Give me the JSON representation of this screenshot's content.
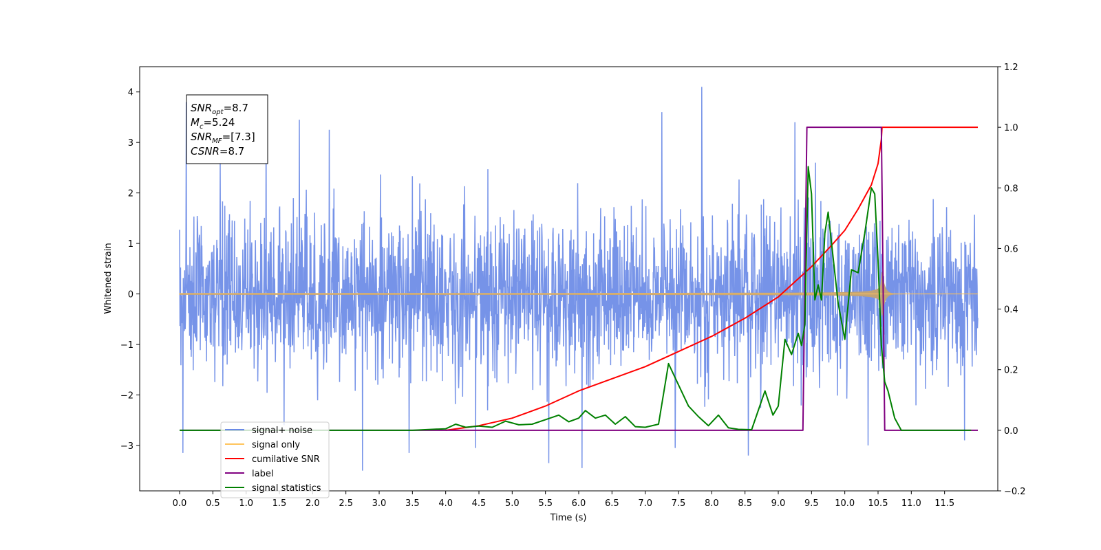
{
  "chart_data": {
    "type": "line",
    "xlabel": "Time (s)",
    "ylabel_left": "Whitened strain",
    "ylabel_right": "",
    "x_range": [
      -0.6,
      12.3
    ],
    "y_left_range": [
      -3.9,
      4.5
    ],
    "y_right_range": [
      -0.2,
      1.2
    ],
    "x_ticks": [
      "0.0",
      "0.5",
      "1.0",
      "1.5",
      "2.0",
      "2.5",
      "3.0",
      "3.5",
      "4.0",
      "4.5",
      "5.0",
      "5.5",
      "6.0",
      "6.5",
      "7.0",
      "7.5",
      "8.0",
      "8.5",
      "9.0",
      "9.5",
      "10.0",
      "10.5",
      "11.0",
      "11.5"
    ],
    "y_left_ticks": [
      "−3",
      "−2",
      "−1",
      "0",
      "1",
      "2",
      "3",
      "4"
    ],
    "y_right_ticks": [
      "−0.2",
      "0.0",
      "0.2",
      "0.4",
      "0.6",
      "0.8",
      "1.0",
      "1.2"
    ],
    "grid": false,
    "legend_position": "lower-left",
    "annotation": {
      "lines": [
        {
          "base": "SNR",
          "sub": "opt",
          "value": "=8.7"
        },
        {
          "base": "M",
          "sub": "c",
          "value": "=5.24"
        },
        {
          "base": "SNR",
          "sub": "MF",
          "value": "=[7.3]"
        },
        {
          "base": "CSNR",
          "sub": "",
          "value": "=8.7"
        }
      ]
    },
    "series": [
      {
        "name": "signal+ noise",
        "color": "#6a8ae6",
        "axis": "left",
        "kind": "noise",
        "x_start": 0.0,
        "x_end": 12.0,
        "typical_envelope": 1.8,
        "spikes": [
          [
            0.1,
            3.8
          ],
          [
            0.05,
            -3.15
          ],
          [
            1.3,
            3.55
          ],
          [
            1.8,
            3.45
          ],
          [
            2.25,
            3.25
          ],
          [
            2.75,
            -3.5
          ],
          [
            3.45,
            3.65
          ],
          [
            3.45,
            -3.15
          ],
          [
            4.45,
            -3.05
          ],
          [
            5.55,
            -3.35
          ],
          [
            6.05,
            -3.45
          ],
          [
            7.25,
            3.6
          ],
          [
            7.85,
            4.1
          ],
          [
            7.45,
            -3.05
          ],
          [
            8.55,
            -3.2
          ],
          [
            9.25,
            3.4
          ],
          [
            10.35,
            -3.0
          ],
          [
            11.8,
            -2.9
          ]
        ]
      },
      {
        "name": "signal only",
        "color": "#ffc45c",
        "fill_color": "#c2a376",
        "axis": "left",
        "kind": "chirp",
        "x_start": 0.0,
        "x_end": 12.0,
        "merger_time": 10.55,
        "peak_amplitude": 0.55
      },
      {
        "name": "cumilative SNR",
        "color": "#ff0000",
        "axis": "right",
        "x": [
          4.0,
          4.5,
          5.0,
          5.5,
          6.0,
          6.5,
          7.0,
          7.5,
          8.0,
          8.5,
          9.0,
          9.5,
          9.8,
          10.0,
          10.2,
          10.4,
          10.5,
          10.55,
          10.56,
          12.0
        ],
        "y": [
          0.0,
          0.015,
          0.04,
          0.08,
          0.13,
          0.17,
          0.21,
          0.26,
          0.31,
          0.37,
          0.44,
          0.54,
          0.61,
          0.66,
          0.73,
          0.81,
          0.88,
          0.96,
          1.0,
          1.0
        ]
      },
      {
        "name": "label",
        "color": "#800080",
        "axis": "right",
        "x": [
          0.0,
          9.37,
          9.43,
          10.55,
          10.6,
          12.0
        ],
        "y": [
          0.0,
          0.0,
          1.0,
          1.0,
          0.0,
          0.0
        ]
      },
      {
        "name": "signal statistics",
        "color": "#008000",
        "axis": "right",
        "x": [
          0.0,
          3.5,
          3.8,
          4.0,
          4.15,
          4.3,
          4.5,
          4.7,
          4.9,
          5.1,
          5.3,
          5.5,
          5.7,
          5.85,
          6.0,
          6.1,
          6.25,
          6.4,
          6.55,
          6.7,
          6.85,
          7.0,
          7.2,
          7.35,
          7.5,
          7.65,
          7.8,
          7.95,
          8.1,
          8.25,
          8.4,
          8.6,
          8.8,
          8.92,
          9.0,
          9.1,
          9.2,
          9.3,
          9.35,
          9.4,
          9.45,
          9.5,
          9.55,
          9.6,
          9.65,
          9.7,
          9.75,
          9.8,
          9.9,
          10.0,
          10.1,
          10.2,
          10.3,
          10.4,
          10.45,
          10.5,
          10.55,
          10.6,
          10.65,
          10.75,
          10.85,
          10.95,
          11.1,
          11.9
        ],
        "y": [
          0.0,
          0.0,
          0.003,
          0.005,
          0.02,
          0.01,
          0.014,
          0.01,
          0.03,
          0.018,
          0.02,
          0.035,
          0.05,
          0.028,
          0.04,
          0.065,
          0.04,
          0.05,
          0.02,
          0.045,
          0.012,
          0.01,
          0.02,
          0.22,
          0.15,
          0.08,
          0.045,
          0.015,
          0.05,
          0.008,
          0.003,
          0.002,
          0.13,
          0.05,
          0.08,
          0.3,
          0.25,
          0.32,
          0.28,
          0.35,
          0.87,
          0.78,
          0.43,
          0.48,
          0.43,
          0.65,
          0.72,
          0.62,
          0.42,
          0.3,
          0.53,
          0.52,
          0.65,
          0.8,
          0.78,
          0.56,
          0.28,
          0.16,
          0.13,
          0.04,
          0.0,
          0.0,
          0.0,
          0.0
        ]
      }
    ]
  }
}
